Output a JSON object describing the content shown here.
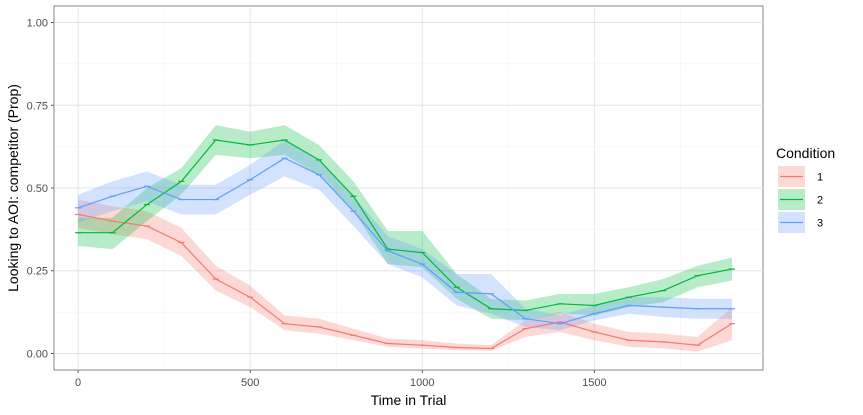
{
  "chart_data": {
    "type": "line",
    "title": "",
    "xlabel": "Time in Trial",
    "ylabel": "Looking to AOI:  competitor (Prop)",
    "xlim": [
      -70,
      1990
    ],
    "ylim": [
      -0.05,
      1.05
    ],
    "x_ticks": [
      0,
      500,
      1000,
      1500
    ],
    "x_tick_labels": [
      "0",
      "500",
      "1000",
      "1500"
    ],
    "y_ticks": [
      0.0,
      0.25,
      0.5,
      0.75,
      1.0
    ],
    "y_tick_labels": [
      "0.00",
      "0.25",
      "0.50",
      "0.75",
      "1.00"
    ],
    "grid": true,
    "legend": {
      "title": "Condition",
      "placement": "right"
    },
    "x": [
      0,
      100,
      200,
      300,
      400,
      500,
      600,
      700,
      800,
      900,
      1000,
      1100,
      1200,
      1300,
      1400,
      1500,
      1600,
      1700,
      1800,
      1900
    ],
    "series": [
      {
        "name": "1",
        "color": "#F8766D",
        "values": [
          0.42,
          0.4,
          0.385,
          0.335,
          0.225,
          0.17,
          0.09,
          0.08,
          0.055,
          0.03,
          0.025,
          0.018,
          0.015,
          0.075,
          0.095,
          0.065,
          0.04,
          0.035,
          0.025,
          0.09
        ],
        "lower": [
          0.38,
          0.36,
          0.345,
          0.295,
          0.19,
          0.14,
          0.07,
          0.06,
          0.04,
          0.02,
          0.015,
          0.01,
          0.008,
          0.05,
          0.065,
          0.04,
          0.02,
          0.015,
          0.005,
          0.04
        ],
        "upper": [
          0.465,
          0.445,
          0.43,
          0.38,
          0.265,
          0.205,
          0.115,
          0.105,
          0.075,
          0.045,
          0.04,
          0.03,
          0.025,
          0.1,
          0.125,
          0.09,
          0.065,
          0.06,
          0.05,
          0.14
        ]
      },
      {
        "name": "2",
        "color": "#00BA38",
        "values": [
          0.365,
          0.365,
          0.45,
          0.52,
          0.645,
          0.63,
          0.645,
          0.585,
          0.475,
          0.315,
          0.305,
          0.2,
          0.135,
          0.13,
          0.15,
          0.145,
          0.17,
          0.19,
          0.235,
          0.255
        ],
        "lower": [
          0.325,
          0.315,
          0.4,
          0.48,
          0.6,
          0.59,
          0.6,
          0.54,
          0.43,
          0.27,
          0.26,
          0.165,
          0.105,
          0.1,
          0.12,
          0.115,
          0.14,
          0.155,
          0.2,
          0.22
        ],
        "upper": [
          0.41,
          0.41,
          0.5,
          0.56,
          0.69,
          0.67,
          0.69,
          0.63,
          0.52,
          0.37,
          0.37,
          0.24,
          0.165,
          0.16,
          0.18,
          0.18,
          0.2,
          0.225,
          0.265,
          0.29
        ]
      },
      {
        "name": "3",
        "color": "#619CFF",
        "values": [
          0.44,
          0.475,
          0.505,
          0.465,
          0.465,
          0.525,
          0.59,
          0.54,
          0.43,
          0.31,
          0.27,
          0.185,
          0.18,
          0.105,
          0.09,
          0.12,
          0.145,
          0.14,
          0.135,
          0.135
        ],
        "lower": [
          0.395,
          0.43,
          0.46,
          0.42,
          0.42,
          0.48,
          0.535,
          0.495,
          0.385,
          0.27,
          0.23,
          0.145,
          0.12,
          0.08,
          0.07,
          0.1,
          0.12,
          0.11,
          0.105,
          0.105
        ],
        "upper": [
          0.48,
          0.52,
          0.55,
          0.51,
          0.51,
          0.57,
          0.645,
          0.585,
          0.475,
          0.355,
          0.315,
          0.24,
          0.24,
          0.135,
          0.115,
          0.145,
          0.17,
          0.17,
          0.165,
          0.165
        ]
      }
    ]
  }
}
